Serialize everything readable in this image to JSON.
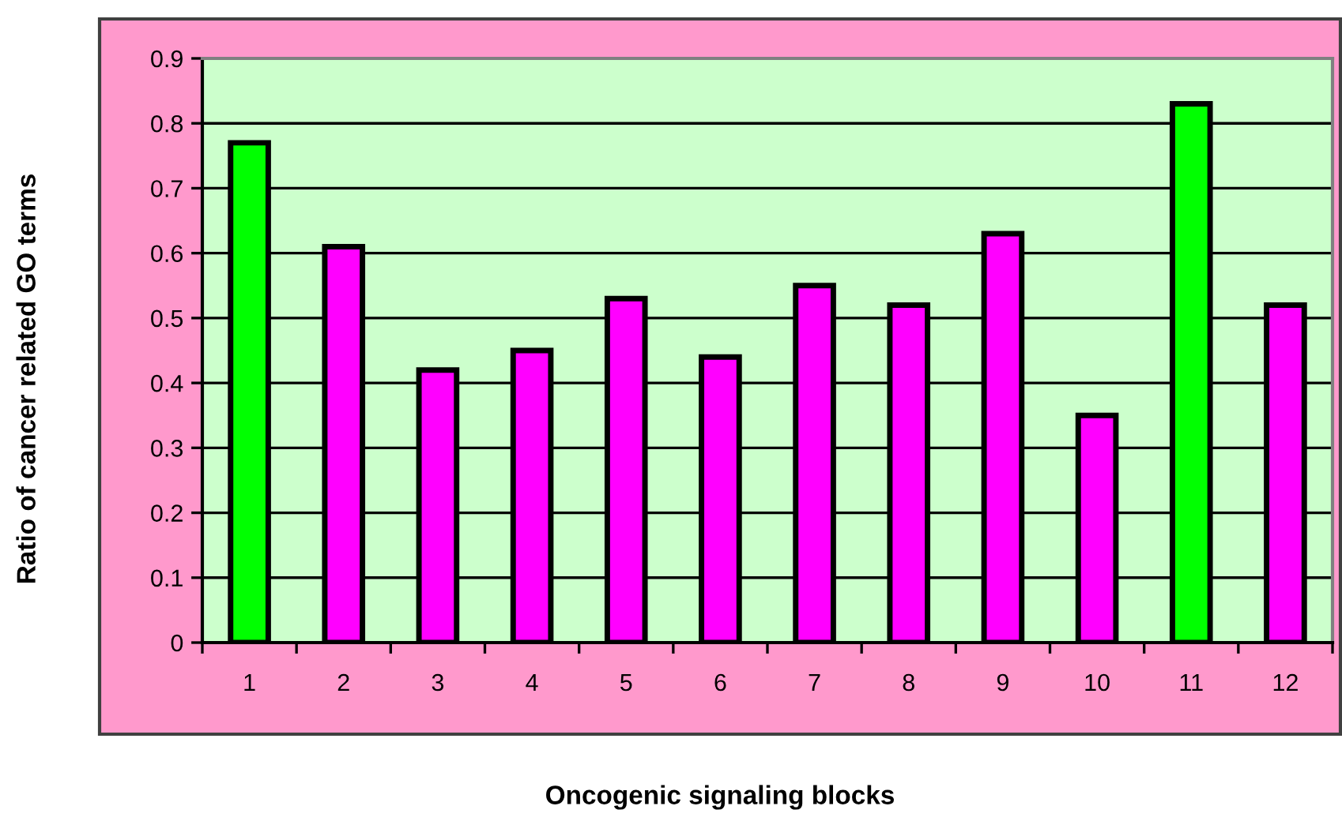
{
  "chart_data": {
    "type": "bar",
    "xlabel": "Oncogenic signaling blocks",
    "ylabel": "Ratio of cancer related GO terms",
    "categories": [
      "1",
      "2",
      "3",
      "4",
      "5",
      "6",
      "7",
      "8",
      "9",
      "10",
      "11",
      "12"
    ],
    "values": [
      0.77,
      0.61,
      0.42,
      0.45,
      0.53,
      0.44,
      0.55,
      0.52,
      0.63,
      0.35,
      0.83,
      0.52
    ],
    "colors": [
      "#00ff00",
      "#ff00ff",
      "#ff00ff",
      "#ff00ff",
      "#ff00ff",
      "#ff00ff",
      "#ff00ff",
      "#ff00ff",
      "#ff00ff",
      "#ff00ff",
      "#00ff00",
      "#ff00ff"
    ],
    "ylim": [
      0,
      0.9
    ],
    "yticks": [
      {
        "value": 0,
        "label": "0"
      },
      {
        "value": 0.1,
        "label": "0.1"
      },
      {
        "value": 0.2,
        "label": "0.2"
      },
      {
        "value": 0.3,
        "label": "0.3"
      },
      {
        "value": 0.4,
        "label": "0.4"
      },
      {
        "value": 0.5,
        "label": "0.5"
      },
      {
        "value": 0.6,
        "label": "0.6"
      },
      {
        "value": 0.7,
        "label": "0.7"
      },
      {
        "value": 0.8,
        "label": "0.8"
      },
      {
        "value": 0.9,
        "label": "0.9"
      }
    ],
    "grid": "y",
    "legend": false
  }
}
